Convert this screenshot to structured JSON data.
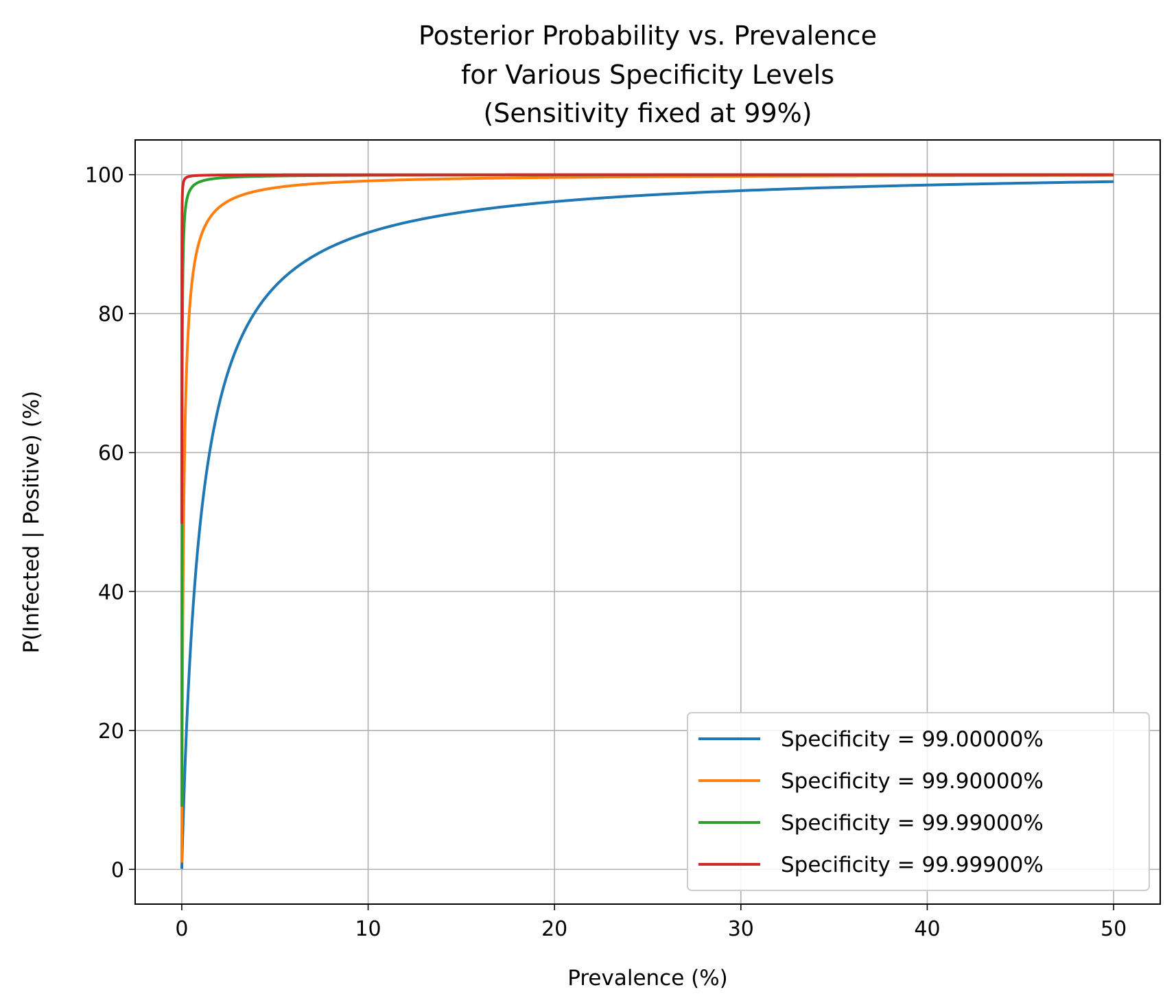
{
  "chart_data": {
    "type": "line",
    "title_lines": [
      "Posterior Probability vs. Prevalence",
      "for Various Specificity Levels",
      "(Sensitivity fixed at 99%)"
    ],
    "xlabel": "Prevalence (%)",
    "ylabel": "P(Infected | Positive) (%)",
    "xlim": [
      -2.5,
      52.5
    ],
    "ylim": [
      -5,
      105
    ],
    "xticks": [
      0,
      10,
      20,
      30,
      40,
      50
    ],
    "yticks": [
      0,
      20,
      40,
      60,
      80,
      100
    ],
    "grid": true,
    "legend_position": "lower-right",
    "sensitivity": 0.99,
    "prevalence_range": [
      0.001,
      50
    ],
    "series": [
      {
        "name": "Specificity = 99.00000%",
        "specificity": 0.99,
        "color": "#1f77b4"
      },
      {
        "name": "Specificity = 99.90000%",
        "specificity": 0.999,
        "color": "#ff7f0e"
      },
      {
        "name": "Specificity = 99.99000%",
        "specificity": 0.9999,
        "color": "#2ca02c"
      },
      {
        "name": "Specificity = 99.99900%",
        "specificity": 0.99999,
        "color": "#d62728"
      }
    ]
  }
}
